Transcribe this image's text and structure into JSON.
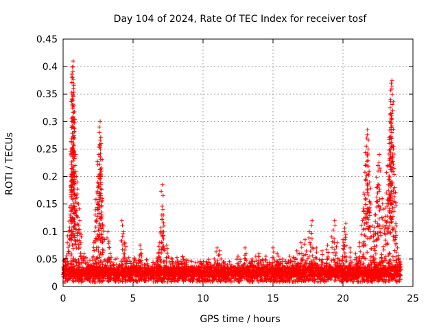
{
  "chart_data": {
    "type": "scatter",
    "title": "Day 104 of 2024, Rate Of TEC Index for receiver tosf",
    "xlabel": "GPS time / hours",
    "ylabel": "ROTI / TECUs",
    "xlim": [
      0,
      25
    ],
    "ylim": [
      0,
      0.45
    ],
    "xticks": [
      0,
      5,
      10,
      15,
      20,
      25
    ],
    "xtick_labels": [
      "0",
      "5",
      "10",
      "15",
      "20",
      "25"
    ],
    "yticks": [
      0,
      0.05,
      0.1,
      0.15,
      0.2,
      0.25,
      0.3,
      0.35,
      0.4,
      0.45
    ],
    "ytick_labels": [
      "0",
      "0.05",
      "0.1",
      "0.15",
      "0.2",
      "0.25",
      "0.3",
      "0.35",
      "0.4",
      "0.45"
    ],
    "grid": true,
    "marker": "plus",
    "series_color": "#ff0000",
    "grid_color": "#a0a0a0",
    "series": [
      {
        "name": "ROTI",
        "points": [
          [
            0.1,
            0.03
          ],
          [
            0.2,
            0.05
          ],
          [
            0.3,
            0.08
          ],
          [
            0.4,
            0.1
          ],
          [
            0.5,
            0.13
          ],
          [
            0.55,
            0.2
          ],
          [
            0.6,
            0.25
          ],
          [
            0.62,
            0.3
          ],
          [
            0.65,
            0.34
          ],
          [
            0.67,
            0.38
          ],
          [
            0.7,
            0.4
          ],
          [
            0.72,
            0.41
          ],
          [
            0.75,
            0.36
          ],
          [
            0.78,
            0.33
          ],
          [
            0.8,
            0.27
          ],
          [
            0.85,
            0.22
          ],
          [
            0.9,
            0.16
          ],
          [
            1.0,
            0.19
          ],
          [
            1.1,
            0.15
          ],
          [
            1.2,
            0.12
          ],
          [
            1.3,
            0.09
          ],
          [
            1.5,
            0.06
          ],
          [
            1.8,
            0.04
          ],
          [
            2.2,
            0.08
          ],
          [
            2.3,
            0.13
          ],
          [
            2.4,
            0.17
          ],
          [
            2.5,
            0.2
          ],
          [
            2.55,
            0.24
          ],
          [
            2.6,
            0.28
          ],
          [
            2.65,
            0.3
          ],
          [
            2.7,
            0.26
          ],
          [
            2.75,
            0.21
          ],
          [
            2.8,
            0.16
          ],
          [
            2.9,
            0.11
          ],
          [
            3.2,
            0.1
          ],
          [
            3.3,
            0.07
          ],
          [
            3.6,
            0.04
          ],
          [
            4.2,
            0.12
          ],
          [
            4.3,
            0.1
          ],
          [
            4.4,
            0.08
          ],
          [
            4.5,
            0.05
          ],
          [
            5.0,
            0.04
          ],
          [
            5.5,
            0.075
          ],
          [
            5.6,
            0.06
          ],
          [
            6.0,
            0.035
          ],
          [
            6.5,
            0.04
          ],
          [
            6.8,
            0.06
          ],
          [
            6.9,
            0.08
          ],
          [
            7.0,
            0.1
          ],
          [
            7.05,
            0.13
          ],
          [
            7.1,
            0.185
          ],
          [
            7.2,
            0.11
          ],
          [
            7.4,
            0.075
          ],
          [
            7.8,
            0.05
          ],
          [
            8.2,
            0.035
          ],
          [
            8.8,
            0.04
          ],
          [
            9.2,
            0.035
          ],
          [
            9.7,
            0.03
          ],
          [
            10.3,
            0.04
          ],
          [
            10.8,
            0.05
          ],
          [
            11.0,
            0.07
          ],
          [
            11.2,
            0.065
          ],
          [
            11.5,
            0.045
          ],
          [
            12.0,
            0.04
          ],
          [
            12.5,
            0.055
          ],
          [
            13.0,
            0.07
          ],
          [
            13.5,
            0.05
          ],
          [
            14.0,
            0.06
          ],
          [
            14.5,
            0.055
          ],
          [
            15.0,
            0.07
          ],
          [
            15.3,
            0.06
          ],
          [
            15.7,
            0.05
          ],
          [
            16.2,
            0.055
          ],
          [
            16.7,
            0.065
          ],
          [
            17.0,
            0.08
          ],
          [
            17.3,
            0.085
          ],
          [
            17.6,
            0.1
          ],
          [
            17.8,
            0.12
          ],
          [
            18.1,
            0.07
          ],
          [
            18.5,
            0.065
          ],
          [
            18.9,
            0.075
          ],
          [
            19.2,
            0.09
          ],
          [
            19.4,
            0.12
          ],
          [
            19.6,
            0.08
          ],
          [
            20.0,
            0.085
          ],
          [
            20.1,
            0.1
          ],
          [
            20.2,
            0.115
          ],
          [
            20.5,
            0.07
          ],
          [
            20.9,
            0.06
          ],
          [
            21.2,
            0.08
          ],
          [
            21.4,
            0.12
          ],
          [
            21.5,
            0.17
          ],
          [
            21.6,
            0.22
          ],
          [
            21.7,
            0.27
          ],
          [
            21.75,
            0.285
          ],
          [
            21.8,
            0.25
          ],
          [
            21.9,
            0.19
          ],
          [
            22.0,
            0.15
          ],
          [
            22.2,
            0.1
          ],
          [
            22.3,
            0.13
          ],
          [
            22.4,
            0.18
          ],
          [
            22.5,
            0.22
          ],
          [
            22.6,
            0.24
          ],
          [
            22.8,
            0.16
          ],
          [
            23.0,
            0.12
          ],
          [
            23.1,
            0.17
          ],
          [
            23.2,
            0.22
          ],
          [
            23.3,
            0.26
          ],
          [
            23.35,
            0.3
          ],
          [
            23.4,
            0.34
          ],
          [
            23.45,
            0.37
          ],
          [
            23.5,
            0.375
          ],
          [
            23.55,
            0.32
          ],
          [
            23.6,
            0.25
          ],
          [
            23.7,
            0.18
          ],
          [
            23.8,
            0.11
          ],
          [
            23.9,
            0.07
          ],
          [
            24.0,
            0.05
          ],
          [
            24.1,
            0.04
          ]
        ]
      }
    ]
  }
}
